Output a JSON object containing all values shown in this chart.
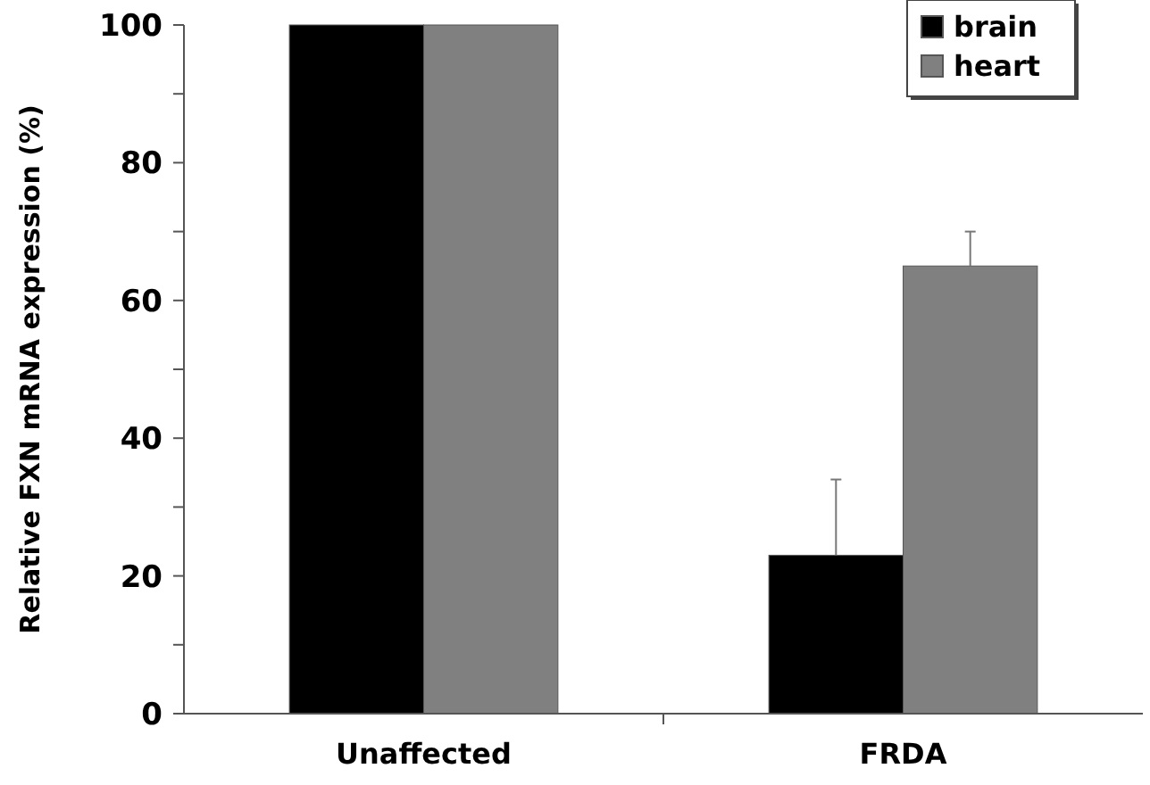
{
  "chart_data": {
    "type": "bar",
    "ylabel": "Relative FXN mRNA expression (%)",
    "categories": [
      "Unaffected",
      "FRDA"
    ],
    "series": [
      {
        "name": "brain",
        "color": "#000000",
        "values": [
          100,
          23
        ],
        "errors": [
          null,
          [
            23,
            34
          ]
        ]
      },
      {
        "name": "heart",
        "color": "#808080",
        "values": [
          100,
          65
        ],
        "errors": [
          null,
          [
            65,
            70
          ]
        ]
      }
    ],
    "ylim": [
      0,
      100
    ],
    "yticks": [
      0,
      {
        "value": 10,
        "label": null
      },
      20,
      {
        "value": 30,
        "label": null
      },
      40,
      {
        "value": 50,
        "label": null
      },
      60,
      {
        "value": 70,
        "label": null
      },
      80,
      {
        "value": 90,
        "label": null
      },
      100
    ],
    "grid": false,
    "legend": "top right"
  }
}
